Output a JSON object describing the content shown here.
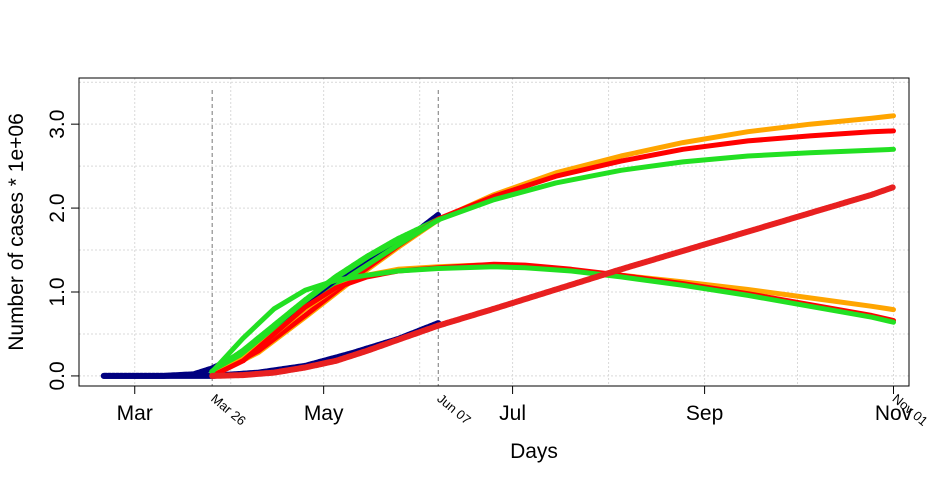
{
  "chart_data": {
    "type": "line",
    "title": "",
    "xlabel": "Days",
    "ylabel": "Number of cases * 1e+06",
    "x_axis": {
      "type": "date",
      "range": [
        "2020-02-12",
        "2020-11-06"
      ],
      "ticks": [
        {
          "date": "2020-03-01",
          "label": "Mar"
        },
        {
          "date": "2020-05-01",
          "label": "May"
        },
        {
          "date": "2020-07-01",
          "label": "Jul"
        },
        {
          "date": "2020-09-01",
          "label": "Sep"
        },
        {
          "date": "2020-11-01",
          "label": "Nov"
        }
      ]
    },
    "y_axis": {
      "range": [
        -0.12,
        3.55
      ],
      "ticks": [
        {
          "value": 0,
          "label": "0.0"
        },
        {
          "value": 1,
          "label": "1.0"
        },
        {
          "value": 2,
          "label": "2.0"
        },
        {
          "value": 3,
          "label": "3.0"
        }
      ]
    },
    "grid": true,
    "reference_lines": [
      {
        "date": "2020-03-26",
        "label": "Mar 26"
      },
      {
        "date": "2020-06-07",
        "label": "Jun 07"
      },
      {
        "date": "2020-11-01",
        "label": "Nov 01"
      }
    ],
    "series": [
      {
        "color": "#000080",
        "style": "thick-points",
        "x": [
          "2020-02-20",
          "2020-03-10",
          "2020-03-20",
          "2020-03-26",
          "2020-04-01",
          "2020-04-10",
          "2020-04-20",
          "2020-05-01",
          "2020-05-10",
          "2020-05-20",
          "2020-06-01",
          "2020-06-07"
        ],
        "y": [
          0.0,
          0.0,
          0.02,
          0.09,
          0.2,
          0.4,
          0.7,
          1.0,
          1.25,
          1.5,
          1.75,
          1.92
        ]
      },
      {
        "color": "#000080",
        "style": "thick-points",
        "x": [
          "2020-02-20",
          "2020-03-10",
          "2020-03-26",
          "2020-04-10",
          "2020-04-25",
          "2020-05-10",
          "2020-05-25",
          "2020-06-07"
        ],
        "y": [
          0.0,
          0.0,
          0.0,
          0.04,
          0.12,
          0.27,
          0.44,
          0.63
        ]
      },
      {
        "color": "#22e022",
        "style": "thick-points",
        "x": [
          "2020-03-26",
          "2020-04-05",
          "2020-04-15",
          "2020-04-25",
          "2020-05-05",
          "2020-05-15",
          "2020-05-25",
          "2020-06-07"
        ],
        "y": [
          0.05,
          0.3,
          0.6,
          0.9,
          1.18,
          1.42,
          1.63,
          1.86
        ]
      },
      {
        "color": "#ffa500",
        "style": "line",
        "x": [
          "2020-03-26",
          "2020-04-10",
          "2020-04-25",
          "2020-05-10",
          "2020-05-25",
          "2020-06-07",
          "2020-06-25",
          "2020-07-15",
          "2020-08-05",
          "2020-08-25",
          "2020-09-15",
          "2020-10-05",
          "2020-10-25",
          "2020-11-01"
        ],
        "y": [
          0.0,
          0.28,
          0.7,
          1.13,
          1.53,
          1.86,
          2.16,
          2.42,
          2.62,
          2.78,
          2.91,
          3.0,
          3.07,
          3.1
        ]
      },
      {
        "color": "#ff0000",
        "style": "line",
        "x": [
          "2020-03-26",
          "2020-04-10",
          "2020-04-25",
          "2020-05-10",
          "2020-05-25",
          "2020-06-07",
          "2020-06-25",
          "2020-07-15",
          "2020-08-05",
          "2020-08-25",
          "2020-09-15",
          "2020-10-05",
          "2020-10-25",
          "2020-11-01"
        ],
        "y": [
          0.0,
          0.3,
          0.72,
          1.15,
          1.55,
          1.87,
          2.14,
          2.38,
          2.56,
          2.7,
          2.8,
          2.86,
          2.91,
          2.92
        ]
      },
      {
        "color": "#22e022",
        "style": "line",
        "x": [
          "2020-03-26",
          "2020-04-10",
          "2020-04-25",
          "2020-05-10",
          "2020-05-25",
          "2020-06-07",
          "2020-06-25",
          "2020-07-15",
          "2020-08-05",
          "2020-08-25",
          "2020-09-15",
          "2020-10-05",
          "2020-10-25",
          "2020-11-01"
        ],
        "y": [
          0.02,
          0.38,
          0.8,
          1.2,
          1.56,
          1.86,
          2.1,
          2.3,
          2.45,
          2.55,
          2.62,
          2.66,
          2.69,
          2.7
        ]
      },
      {
        "color": "#ffa500",
        "style": "line",
        "x": [
          "2020-03-26",
          "2020-04-05",
          "2020-04-15",
          "2020-04-25",
          "2020-05-05",
          "2020-05-15",
          "2020-05-25",
          "2020-06-07",
          "2020-06-20",
          "2020-07-05",
          "2020-07-20",
          "2020-08-05",
          "2020-08-25",
          "2020-09-15",
          "2020-10-05",
          "2020-10-25",
          "2020-11-01"
        ],
        "y": [
          0.0,
          0.2,
          0.5,
          0.8,
          1.05,
          1.2,
          1.27,
          1.3,
          1.32,
          1.3,
          1.26,
          1.2,
          1.12,
          1.03,
          0.93,
          0.83,
          0.79
        ]
      },
      {
        "color": "#ff0000",
        "style": "line",
        "x": [
          "2020-03-26",
          "2020-04-05",
          "2020-04-15",
          "2020-04-25",
          "2020-05-05",
          "2020-05-15",
          "2020-05-25",
          "2020-06-07",
          "2020-06-25",
          "2020-07-05",
          "2020-07-20",
          "2020-08-05",
          "2020-08-25",
          "2020-09-15",
          "2020-10-05",
          "2020-10-25",
          "2020-11-01"
        ],
        "y": [
          0.0,
          0.18,
          0.5,
          0.82,
          1.05,
          1.18,
          1.25,
          1.29,
          1.33,
          1.32,
          1.27,
          1.2,
          1.1,
          0.98,
          0.85,
          0.72,
          0.66
        ]
      },
      {
        "color": "#22e022",
        "style": "line",
        "x": [
          "2020-03-26",
          "2020-04-05",
          "2020-04-15",
          "2020-04-25",
          "2020-05-05",
          "2020-05-15",
          "2020-05-25",
          "2020-06-07",
          "2020-06-25",
          "2020-07-05",
          "2020-07-20",
          "2020-08-05",
          "2020-08-25",
          "2020-09-15",
          "2020-10-05",
          "2020-10-25",
          "2020-11-01"
        ],
        "y": [
          0.05,
          0.45,
          0.8,
          1.02,
          1.14,
          1.2,
          1.25,
          1.28,
          1.3,
          1.29,
          1.25,
          1.18,
          1.08,
          0.96,
          0.83,
          0.7,
          0.64
        ]
      },
      {
        "color": "#e82020",
        "style": "thick-points",
        "x": [
          "2020-03-26",
          "2020-04-05",
          "2020-04-15",
          "2020-04-25",
          "2020-05-05",
          "2020-05-15",
          "2020-05-25",
          "2020-06-07"
        ],
        "y": [
          0.0,
          0.01,
          0.04,
          0.1,
          0.18,
          0.3,
          0.43,
          0.6
        ]
      },
      {
        "color": "#e82020",
        "style": "thick-points",
        "x": [
          "2020-06-07",
          "2020-06-25",
          "2020-07-15",
          "2020-08-05",
          "2020-08-25",
          "2020-09-15",
          "2020-10-05",
          "2020-10-25",
          "2020-11-01"
        ],
        "y": [
          0.6,
          0.8,
          1.03,
          1.27,
          1.49,
          1.72,
          1.94,
          2.16,
          2.25
        ]
      }
    ]
  }
}
